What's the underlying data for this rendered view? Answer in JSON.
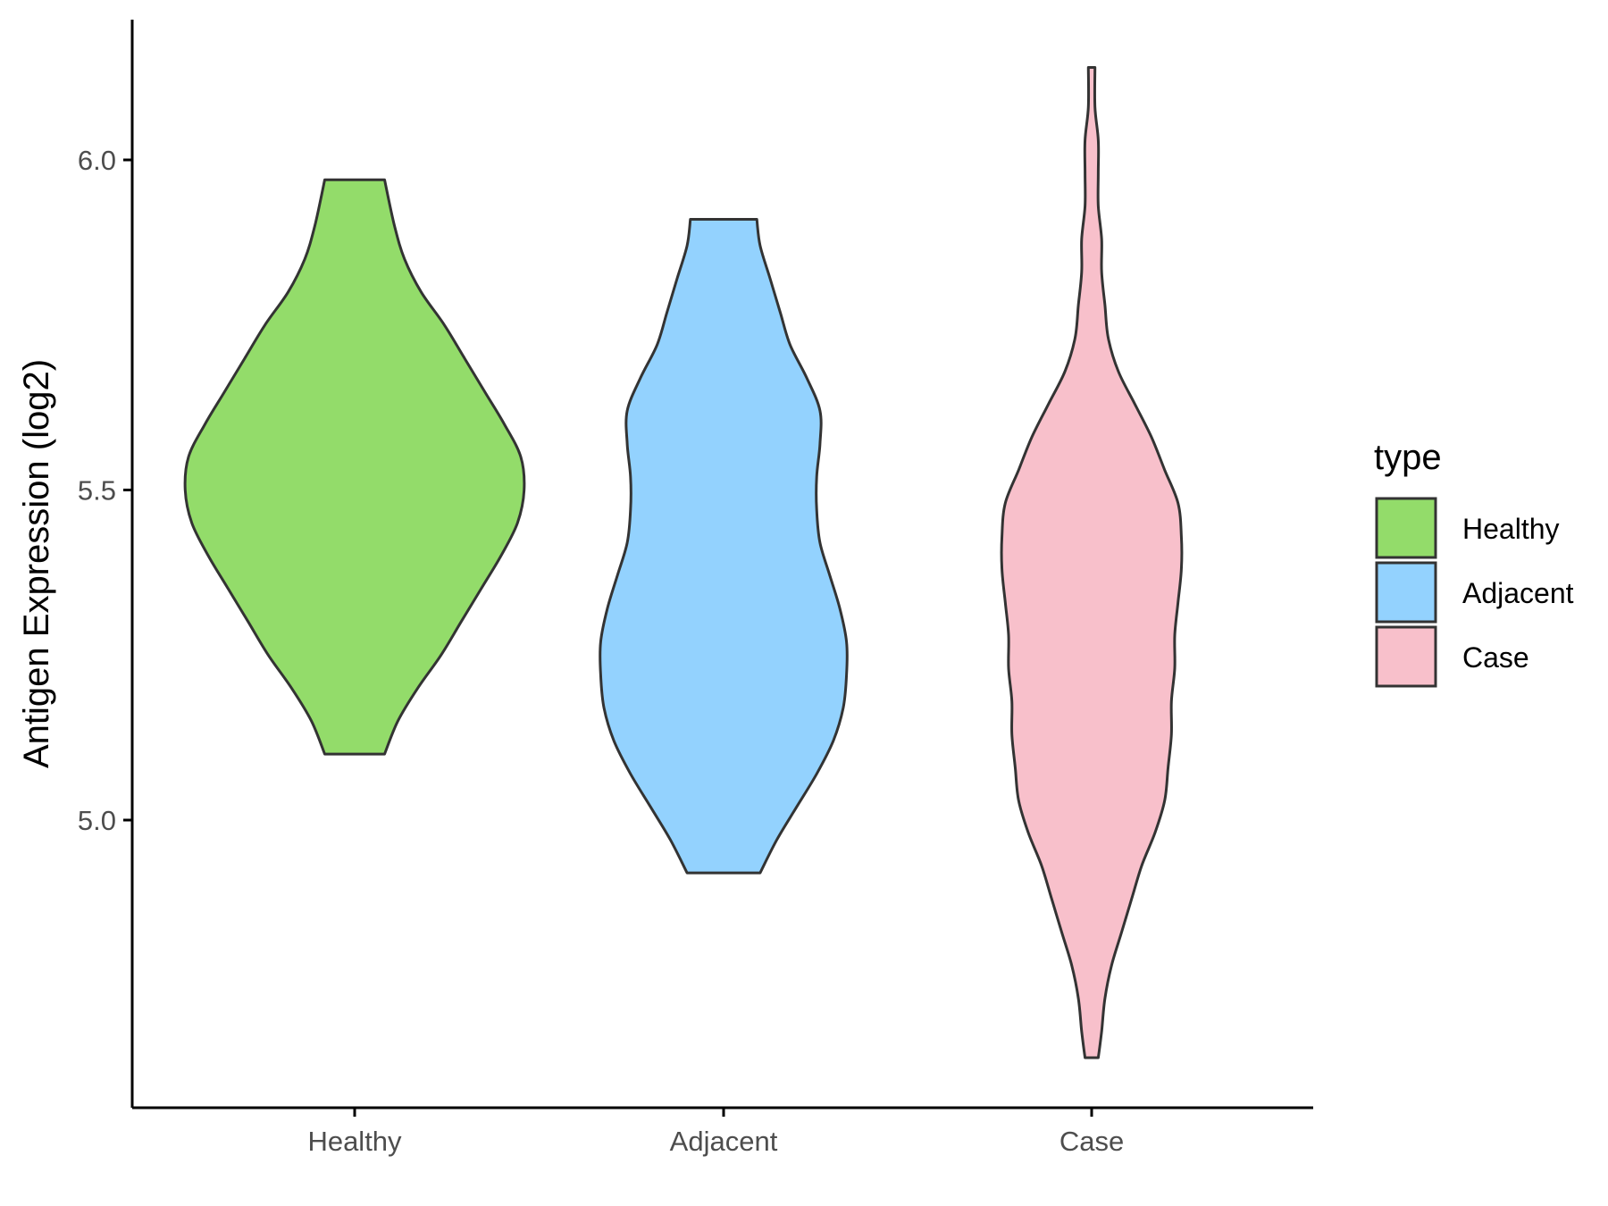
{
  "chart_data": {
    "type": "violin",
    "title": "",
    "xlabel": "",
    "ylabel": "Antigen Expression (log2)",
    "ylim": [
      4.6,
      6.22
    ],
    "yticks": [
      "5.0",
      "5.5",
      "6.0"
    ],
    "ytick_values": [
      5.0,
      5.5,
      6.0
    ],
    "categories": [
      "Healthy",
      "Adjacent",
      "Case"
    ],
    "legend": {
      "title": "type",
      "position": "right",
      "entries": [
        "Healthy",
        "Adjacent",
        "Case"
      ]
    },
    "grid": false,
    "series": [
      {
        "name": "Healthy",
        "color": "#93dc6a",
        "profile": [
          [
            5.1,
            0.09
          ],
          [
            5.15,
            0.13
          ],
          [
            5.2,
            0.19
          ],
          [
            5.25,
            0.26
          ],
          [
            5.3,
            0.32
          ],
          [
            5.35,
            0.38
          ],
          [
            5.4,
            0.44
          ],
          [
            5.45,
            0.49
          ],
          [
            5.5,
            0.51
          ],
          [
            5.55,
            0.5
          ],
          [
            5.6,
            0.45
          ],
          [
            5.65,
            0.39
          ],
          [
            5.7,
            0.33
          ],
          [
            5.75,
            0.27
          ],
          [
            5.8,
            0.2
          ],
          [
            5.85,
            0.15
          ],
          [
            5.9,
            0.12
          ],
          [
            5.97,
            0.09
          ]
        ]
      },
      {
        "name": "Adjacent",
        "color": "#93d2fe",
        "profile": [
          [
            4.92,
            0.11
          ],
          [
            4.97,
            0.16
          ],
          [
            5.02,
            0.22
          ],
          [
            5.07,
            0.28
          ],
          [
            5.12,
            0.33
          ],
          [
            5.17,
            0.36
          ],
          [
            5.22,
            0.37
          ],
          [
            5.27,
            0.37
          ],
          [
            5.32,
            0.35
          ],
          [
            5.37,
            0.32
          ],
          [
            5.42,
            0.29
          ],
          [
            5.47,
            0.28
          ],
          [
            5.52,
            0.28
          ],
          [
            5.57,
            0.29
          ],
          [
            5.62,
            0.29
          ],
          [
            5.67,
            0.25
          ],
          [
            5.72,
            0.2
          ],
          [
            5.77,
            0.17
          ],
          [
            5.82,
            0.14
          ],
          [
            5.87,
            0.11
          ],
          [
            5.91,
            0.1
          ]
        ]
      },
      {
        "name": "Case",
        "color": "#f8c0cb",
        "profile": [
          [
            4.64,
            0.02
          ],
          [
            4.68,
            0.03
          ],
          [
            4.73,
            0.04
          ],
          [
            4.78,
            0.06
          ],
          [
            4.83,
            0.09
          ],
          [
            4.88,
            0.12
          ],
          [
            4.93,
            0.15
          ],
          [
            4.98,
            0.19
          ],
          [
            5.03,
            0.22
          ],
          [
            5.08,
            0.23
          ],
          [
            5.13,
            0.24
          ],
          [
            5.18,
            0.24
          ],
          [
            5.23,
            0.25
          ],
          [
            5.28,
            0.25
          ],
          [
            5.33,
            0.26
          ],
          [
            5.38,
            0.27
          ],
          [
            5.43,
            0.27
          ],
          [
            5.48,
            0.26
          ],
          [
            5.53,
            0.22
          ],
          [
            5.58,
            0.18
          ],
          [
            5.63,
            0.13
          ],
          [
            5.68,
            0.08
          ],
          [
            5.73,
            0.05
          ],
          [
            5.78,
            0.04
          ],
          [
            5.83,
            0.03
          ],
          [
            5.88,
            0.03
          ],
          [
            5.93,
            0.02
          ],
          [
            5.98,
            0.02
          ],
          [
            6.03,
            0.02
          ],
          [
            6.08,
            0.01
          ],
          [
            6.14,
            0.01
          ]
        ]
      }
    ]
  }
}
